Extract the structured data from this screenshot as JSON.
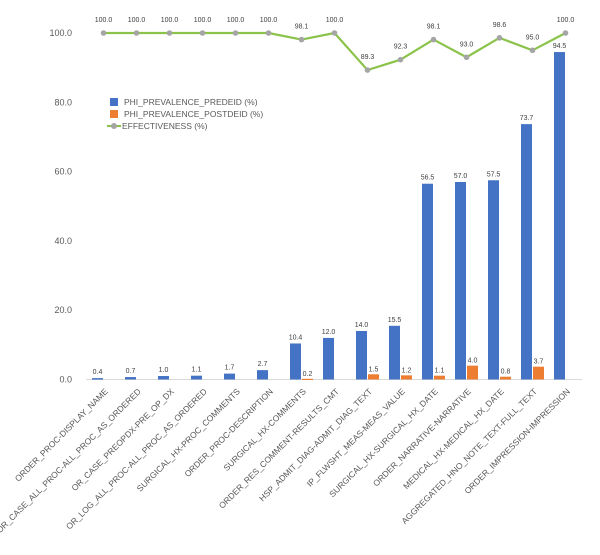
{
  "chart_data": {
    "type": "bar",
    "title": "",
    "xlabel": "",
    "ylabel": "",
    "ylim": [
      0,
      100
    ],
    "yticks": [
      "0.0",
      "20.0",
      "40.0",
      "60.0",
      "80.0",
      "100.0"
    ],
    "ytick_values": [
      0,
      20,
      40,
      60,
      80,
      100
    ],
    "grid": false,
    "legend_position": "top-left",
    "categories": [
      "ORDER_PROC-DISPLAY_NAME",
      "OR_CASE_ALL_PROC-ALL_PROC_AS_ORDERED",
      "OR_CASE_PREOPDX-PRE_OP_DX",
      "OR_LOG_ALL_PROC-ALL_PROC_AS_ORDERED",
      "SURGICAL_HX-PROC_COMMENTS",
      "ORDER_PROC-DESCRIPTION",
      "SURGICAL_HX-COMMENTS",
      "ORDER_RES_COMMENT-RESULTS_CMT",
      "HSP_ADMIT_DIAG-ADMIT_DIAG_TEXT",
      "IP_FLWSHT_MEAS-MEAS_VALUE",
      "SURGICAL_HX-SURGICAL_HX_DATE",
      "ORDER_NARRATIVE-NARRATIVE",
      "MEDICAL_HX-MEDICAL_HX_DATE",
      "AGGREGATED_HNO_NOTE_TEXT-FULL_TEXT",
      "ORDER_IMPRESSION-IMPRESSION"
    ],
    "series": [
      {
        "name": "PHI_PREVALENCE_PREDEID (%)",
        "type": "bar",
        "color": "#4472C4",
        "values": [
          0.4,
          0.7,
          1.0,
          1.1,
          1.7,
          2.7,
          10.4,
          12.0,
          14.0,
          15.5,
          56.5,
          57.0,
          57.5,
          73.7,
          94.5
        ],
        "labels": [
          "0.4",
          "0.7",
          "1.0",
          "1.1",
          "1.7",
          "2.7",
          "10.4",
          "12.0",
          "14.0",
          "15.5",
          "56.5",
          "57.0",
          "57.5",
          "73.7",
          "94.5"
        ]
      },
      {
        "name": "PHI_PREVALENCE_POSTDEID (%)",
        "type": "bar",
        "color": "#ED7D31",
        "values": [
          null,
          null,
          null,
          null,
          null,
          null,
          0.2,
          null,
          1.5,
          1.2,
          1.1,
          4.0,
          0.8,
          3.7,
          null
        ],
        "labels": [
          "",
          "",
          "",
          "",
          "",
          "",
          "0.2",
          "",
          "1.5",
          "1.2",
          "1.1",
          "4.0",
          "0.8",
          "3.7",
          ""
        ]
      },
      {
        "name": "EFFECTIVENESS (%)",
        "type": "line",
        "color": "#8BC34A",
        "marker_color": "#A5A5A5",
        "values": [
          100.0,
          100.0,
          100.0,
          100.0,
          100.0,
          100.0,
          98.1,
          100.0,
          89.3,
          92.3,
          98.1,
          93.0,
          98.6,
          95.0,
          100.0
        ],
        "labels": [
          "100.0",
          "100.0",
          "100.0",
          "100.0",
          "100.0",
          "100.0",
          "98.1",
          "100.0",
          "89.3",
          "92.3",
          "98.1",
          "93.0",
          "98.6",
          "95.0",
          "100.0"
        ]
      }
    ]
  },
  "legend": {
    "items": [
      {
        "label": "PHI_PREVALENCE_PREDEID (%)",
        "color": "#4472C4",
        "kind": "square"
      },
      {
        "label": "PHI_PREVALENCE_POSTDEID (%)",
        "color": "#ED7D31",
        "kind": "square"
      },
      {
        "label": "EFFECTIVENESS (%)",
        "color": "#A5A5A5",
        "kind": "line-marker"
      }
    ]
  }
}
